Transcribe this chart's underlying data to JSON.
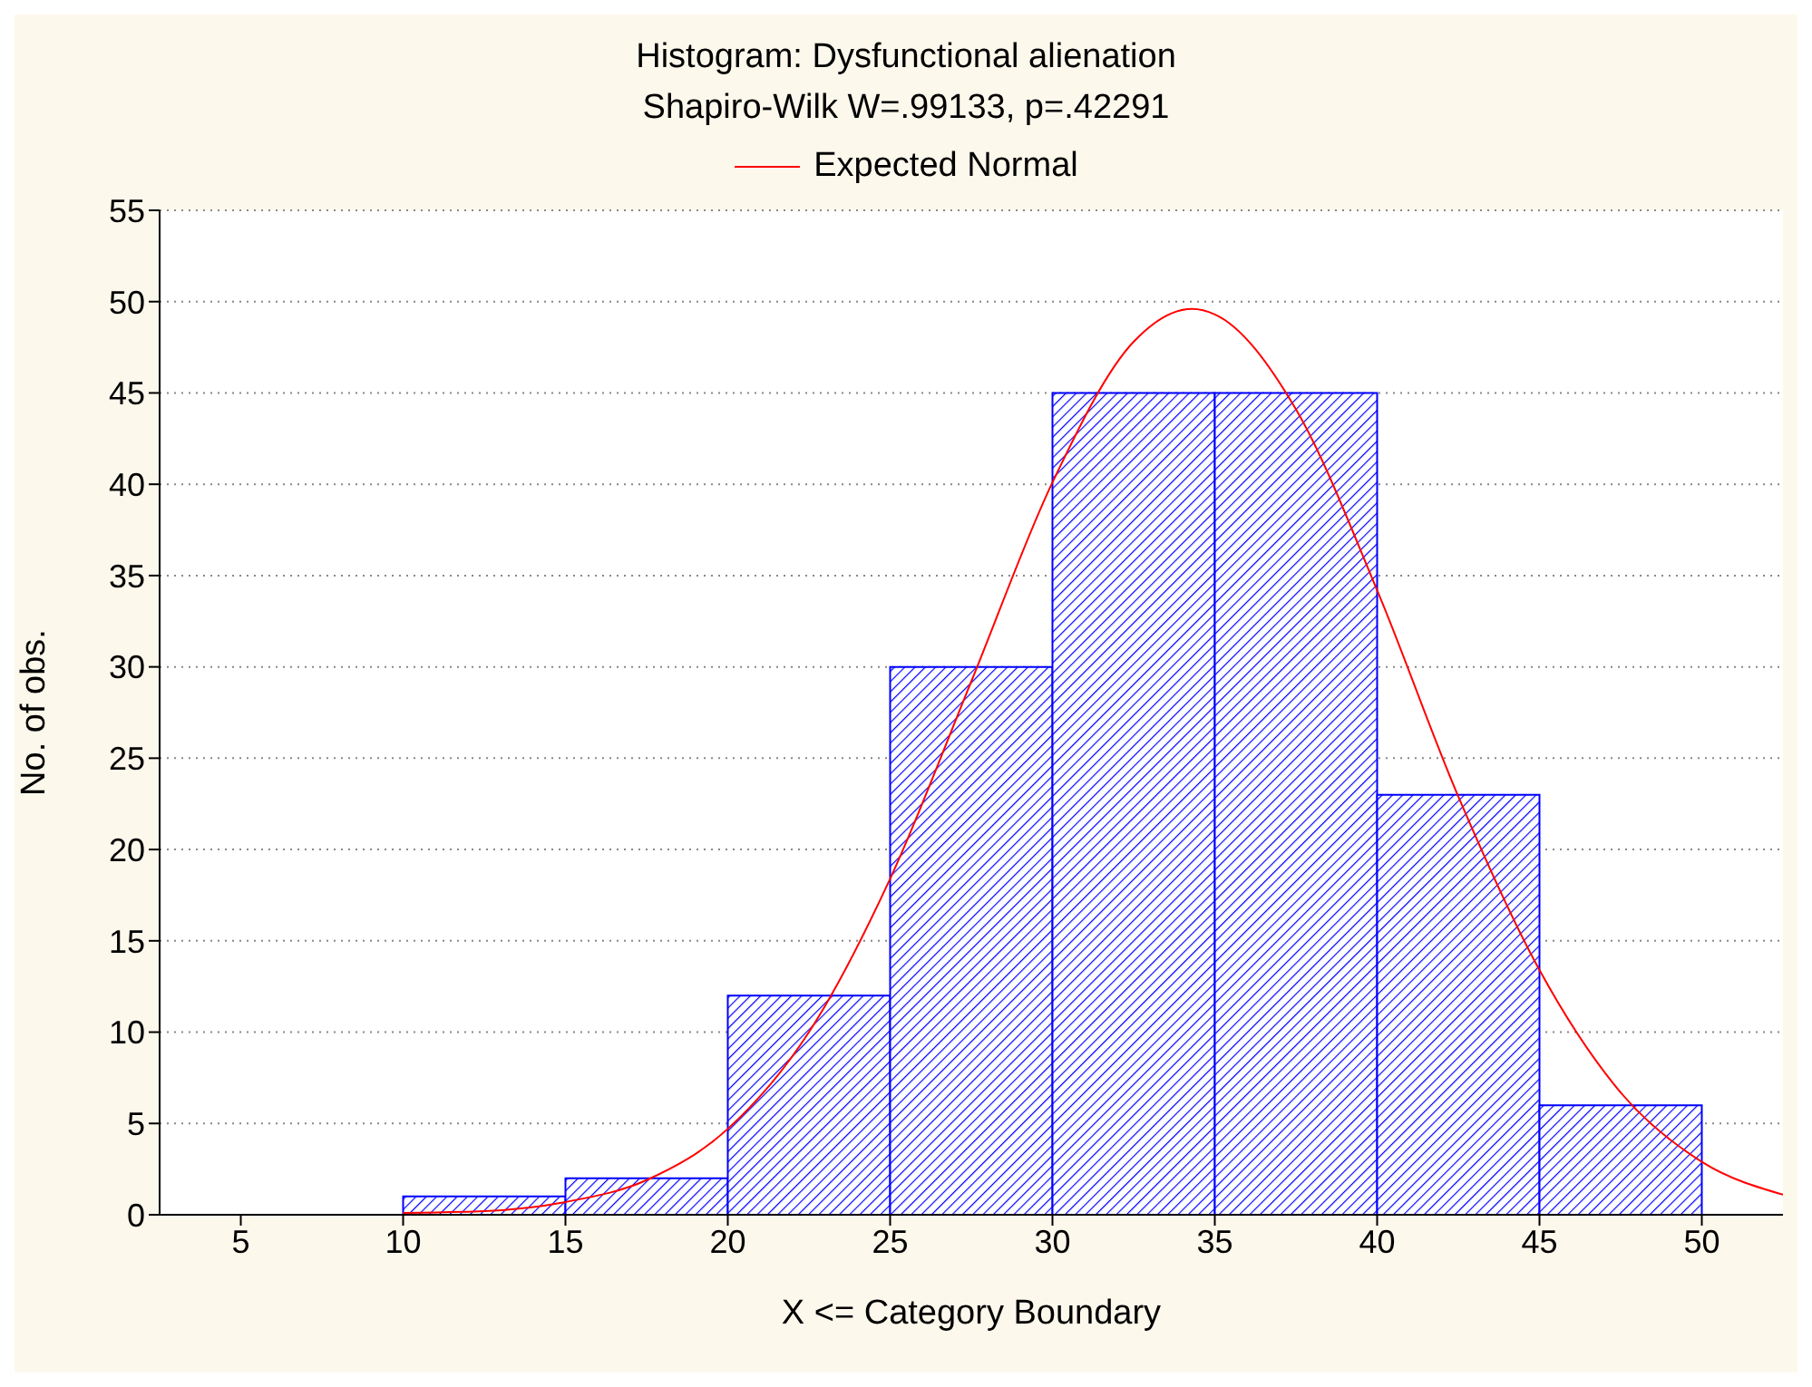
{
  "chart_data": {
    "type": "histogram",
    "title": "Histogram: Dysfunctional alienation",
    "subtitle": "Shapiro-Wilk W=.99133, p=.42291",
    "xlabel": "X <= Category Boundary",
    "ylabel": "No. of obs.",
    "bins": [
      10,
      15,
      20,
      25,
      30,
      35,
      40,
      45,
      50
    ],
    "values": [
      1,
      2,
      12,
      30,
      45,
      45,
      23,
      6
    ],
    "color": "#0000ff",
    "series": [
      {
        "name": "Expected Normal",
        "type": "line",
        "color": "#ff0000",
        "x": [
          10,
          12.5,
          15,
          17.5,
          20,
          22.5,
          25,
          27.5,
          30,
          32.5,
          34.3,
          35,
          37.5,
          40,
          42.5,
          45,
          47.5,
          50,
          52.5
        ],
        "values": [
          0.1,
          0.2,
          0.7,
          1.9,
          4.7,
          10,
          18.4,
          29.2,
          40.1,
          47.8,
          49.6,
          49.3,
          44.1,
          34.2,
          22.9,
          13.4,
          6.7,
          2.9,
          1.1
        ]
      }
    ],
    "xlim": [
      2.5,
      52.5
    ],
    "xticks": [
      5,
      10,
      15,
      20,
      25,
      30,
      35,
      40,
      45,
      50
    ],
    "ylim": [
      0,
      55
    ],
    "yticks": [
      0,
      5,
      10,
      15,
      20,
      25,
      30,
      35,
      40,
      45,
      50,
      55
    ],
    "grid": "y",
    "legend": "top",
    "marker": "none"
  }
}
